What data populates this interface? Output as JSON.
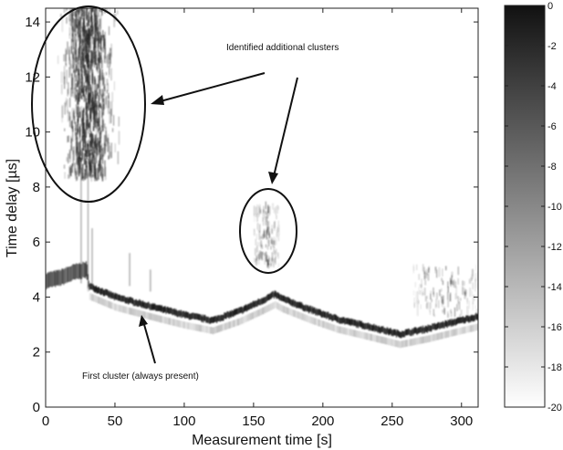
{
  "chart_data": {
    "type": "heatmap",
    "xlabel": "Measurement time [s]",
    "ylabel": "Time delay [µs]",
    "xlim": [
      0,
      312
    ],
    "ylim": [
      0,
      14.5
    ],
    "xticks": [
      0,
      50,
      100,
      150,
      200,
      250,
      300
    ],
    "yticks": [
      0,
      2,
      4,
      6,
      8,
      10,
      12,
      14
    ],
    "colorbar": {
      "min": -20,
      "max": 0,
      "ticks": [
        0,
        -2,
        -4,
        -6,
        -8,
        -10,
        -12,
        -14,
        -16,
        -18,
        -20
      ],
      "colormap": "gray-reversed"
    },
    "first_cluster_trace": {
      "x": [
        0,
        10,
        20,
        29,
        31,
        50,
        80,
        100,
        120,
        140,
        155,
        165,
        170,
        190,
        210,
        235,
        255,
        275,
        295,
        312
      ],
      "y": [
        4.6,
        4.7,
        4.9,
        5.0,
        4.4,
        4.0,
        3.6,
        3.35,
        3.15,
        3.5,
        3.85,
        4.1,
        3.95,
        3.55,
        3.2,
        2.9,
        2.65,
        2.85,
        3.1,
        3.3
      ]
    },
    "additional_clusters": [
      {
        "x_range": [
          5,
          55
        ],
        "y_range": [
          8.2,
          14.5
        ],
        "intensity": "high"
      },
      {
        "x_range": [
          150,
          168
        ],
        "y_range": [
          5.0,
          7.2
        ],
        "intensity": "low"
      },
      {
        "x_range": [
          265,
          312
        ],
        "y_range": [
          3.2,
          5.0
        ],
        "intensity": "low"
      }
    ],
    "annotations": [
      {
        "text": "Identified additional clusters"
      },
      {
        "text": "First cluster (always present)"
      }
    ],
    "grid": false
  }
}
